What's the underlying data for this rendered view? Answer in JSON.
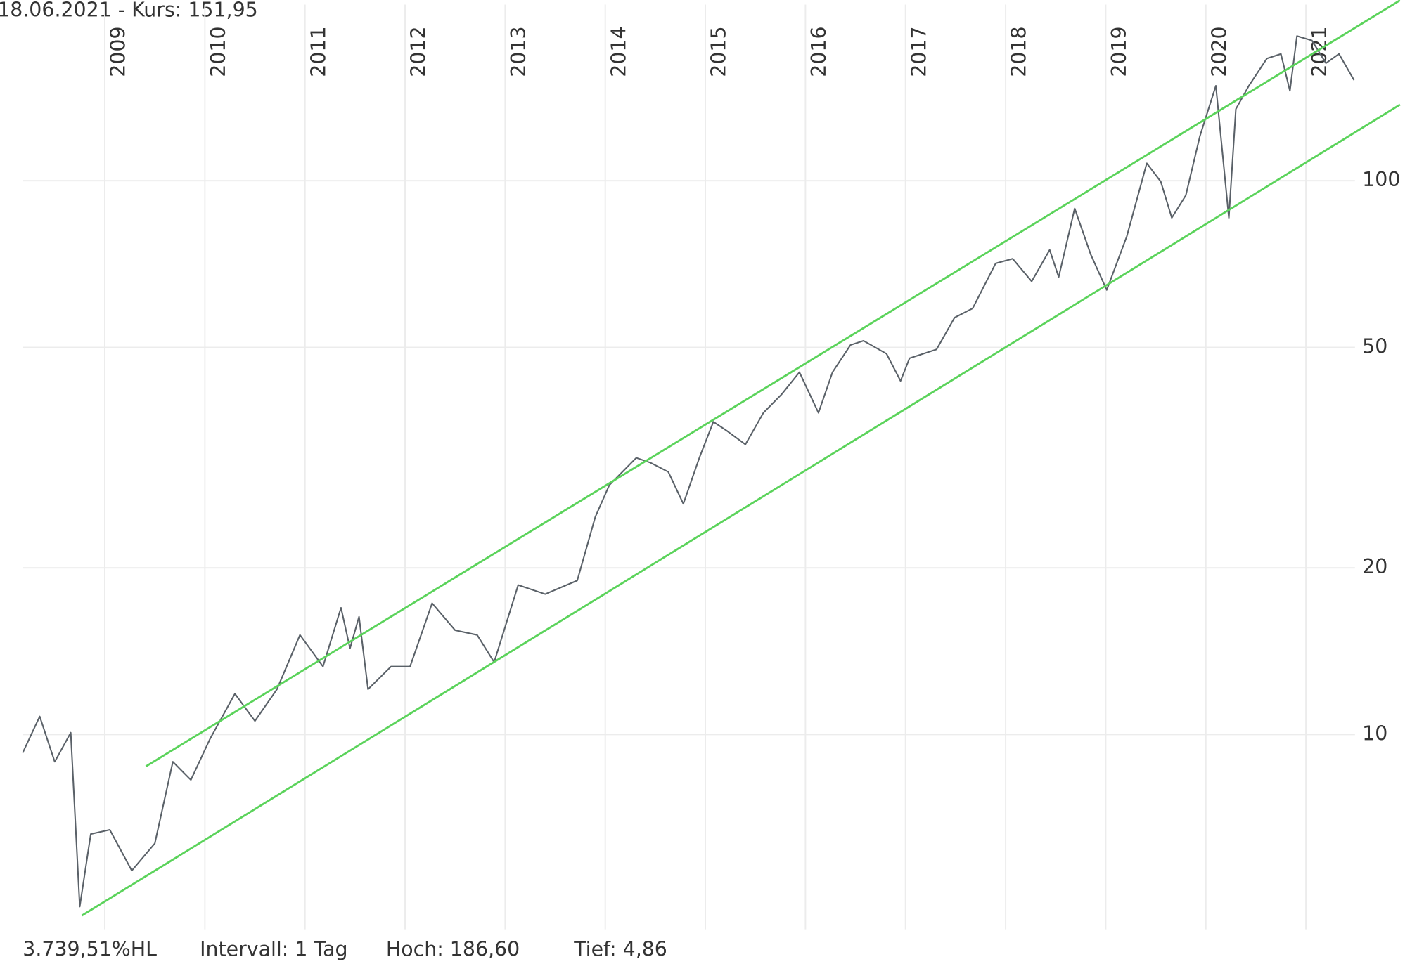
{
  "chart_data": {
    "type": "line",
    "title": "18.06.2021  - Kurs: 151,95",
    "footer": [
      "3.739,51%HL",
      "Intervall: 1 Tag",
      "Hoch:  186,60",
      "Tief:  4,86"
    ],
    "log_scale": true,
    "grid": true,
    "xlim": [
      2008.18,
      2021.49
    ],
    "xticks": [
      2009,
      2010,
      2011,
      2012,
      2013,
      2014,
      2015,
      2016,
      2017,
      2018,
      2019,
      2020,
      2021
    ],
    "ylim": [
      4.45,
      208
    ],
    "yticks": [
      10,
      20,
      50,
      100
    ],
    "x": [
      2008.18,
      2008.35,
      2008.5,
      2008.66,
      2008.75,
      2008.86,
      2009.05,
      2009.27,
      2009.5,
      2009.68,
      2009.86,
      2010.05,
      2010.3,
      2010.5,
      2010.72,
      2010.95,
      2011.18,
      2011.36,
      2011.45,
      2011.54,
      2011.63,
      2011.86,
      2012.05,
      2012.27,
      2012.5,
      2012.72,
      2012.89,
      2013.13,
      2013.4,
      2013.72,
      2013.9,
      2014.04,
      2014.31,
      2014.45,
      2014.63,
      2014.78,
      2014.94,
      2015.08,
      2015.22,
      2015.4,
      2015.58,
      2015.76,
      2015.94,
      2016.13,
      2016.27,
      2016.45,
      2016.58,
      2016.81,
      2016.95,
      2017.04,
      2017.31,
      2017.49,
      2017.67,
      2017.9,
      2018.07,
      2018.26,
      2018.44,
      2018.53,
      2018.69,
      2018.85,
      2019.01,
      2019.21,
      2019.41,
      2019.55,
      2019.66,
      2019.8,
      2019.94,
      2020.1,
      2020.23,
      2020.3,
      2020.43,
      2020.61,
      2020.75,
      2020.84,
      2020.91,
      2021.06,
      2021.2,
      2021.33,
      2021.48
    ],
    "series": [
      {
        "color": "#5a6168",
        "values": [
          9.27,
          10.78,
          8.93,
          10.08,
          4.89,
          6.61,
          6.73,
          5.68,
          6.36,
          8.93,
          8.28,
          9.81,
          11.85,
          10.58,
          12.07,
          15.13,
          13.27,
          16.94,
          14.31,
          16.32,
          12.07,
          13.27,
          13.27,
          17.26,
          15.43,
          15.13,
          13.51,
          18.62,
          17.93,
          18.97,
          24.7,
          28.2,
          31.6,
          30.97,
          29.8,
          26.1,
          31.6,
          36.7,
          35.3,
          33.4,
          38.1,
          41.1,
          45.1,
          38.1,
          45.1,
          50.5,
          51.4,
          48.7,
          43.5,
          47.8,
          49.6,
          56.6,
          58.8,
          70.9,
          72.3,
          65.8,
          75.0,
          67.0,
          89.1,
          73.6,
          63.5,
          79.3,
          107.5,
          99.6,
          85.7,
          94.1,
          120.2,
          148.4,
          85.7,
          134.7,
          148.4,
          166.2,
          169.4,
          145.3,
          182.5,
          179.1,
          163.0,
          169.4,
          151.95
        ]
      }
    ],
    "trend_lines": [
      {
        "color": "#5bd35b",
        "x": [
          2009.41,
          2021.94
        ],
        "values": [
          8.76,
          211.7
        ]
      },
      {
        "color": "#5bd35b",
        "x": [
          2008.77,
          2021.94
        ],
        "values": [
          4.71,
          137.2
        ]
      }
    ]
  }
}
